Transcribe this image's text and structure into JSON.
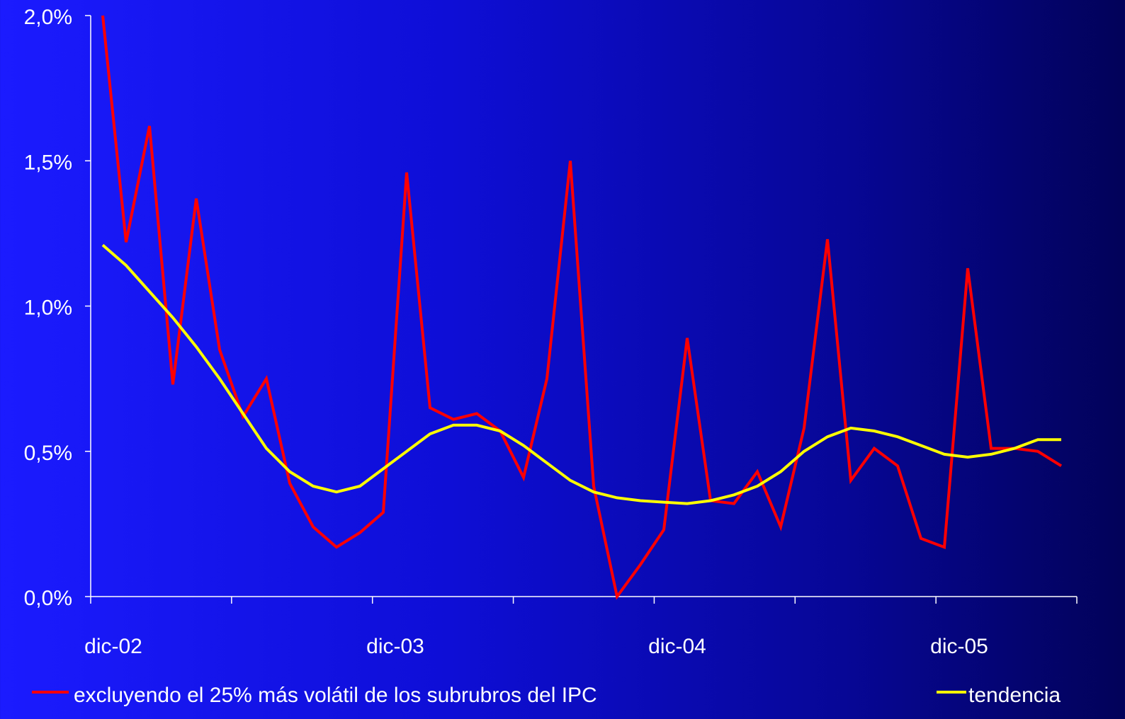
{
  "chart_data": {
    "type": "line",
    "x_tick_labels": [
      "dic-02",
      "dic-03",
      "dic-04",
      "dic-05"
    ],
    "y_tick_labels": [
      "0,0%",
      "0,5%",
      "1,0%",
      "1,5%",
      "2,0%"
    ],
    "y_ticks": [
      0,
      0.5,
      1.0,
      1.5,
      2.0
    ],
    "ylim": [
      0,
      2.0
    ],
    "x_range_months": "dic-02 to jun-06",
    "legend_position": "bottom",
    "grid": false,
    "series": [
      {
        "name": "excluyendo el 25% más volátil de los subrubros del IPC",
        "color": "#ff0000",
        "values": [
          2.0,
          1.22,
          1.62,
          0.73,
          1.37,
          0.85,
          0.62,
          0.75,
          0.39,
          0.24,
          0.17,
          0.22,
          0.29,
          1.46,
          0.65,
          0.61,
          0.63,
          0.57,
          0.41,
          0.75,
          1.5,
          0.38,
          0.0,
          0.11,
          0.23,
          0.89,
          0.33,
          0.32,
          0.43,
          0.24,
          0.58,
          1.23,
          0.4,
          0.51,
          0.45,
          0.2,
          0.17,
          1.13,
          0.51,
          0.51,
          0.5,
          0.45
        ]
      },
      {
        "name": "tendencia",
        "color": "#ffff00",
        "values": [
          1.21,
          1.14,
          1.05,
          0.96,
          0.86,
          0.75,
          0.63,
          0.51,
          0.43,
          0.38,
          0.36,
          0.38,
          0.44,
          0.5,
          0.56,
          0.59,
          0.59,
          0.57,
          0.52,
          0.46,
          0.4,
          0.36,
          0.34,
          0.33,
          0.325,
          0.32,
          0.33,
          0.35,
          0.38,
          0.43,
          0.5,
          0.55,
          0.58,
          0.57,
          0.55,
          0.52,
          0.49,
          0.48,
          0.49,
          0.51,
          0.54,
          0.54
        ]
      }
    ]
  }
}
